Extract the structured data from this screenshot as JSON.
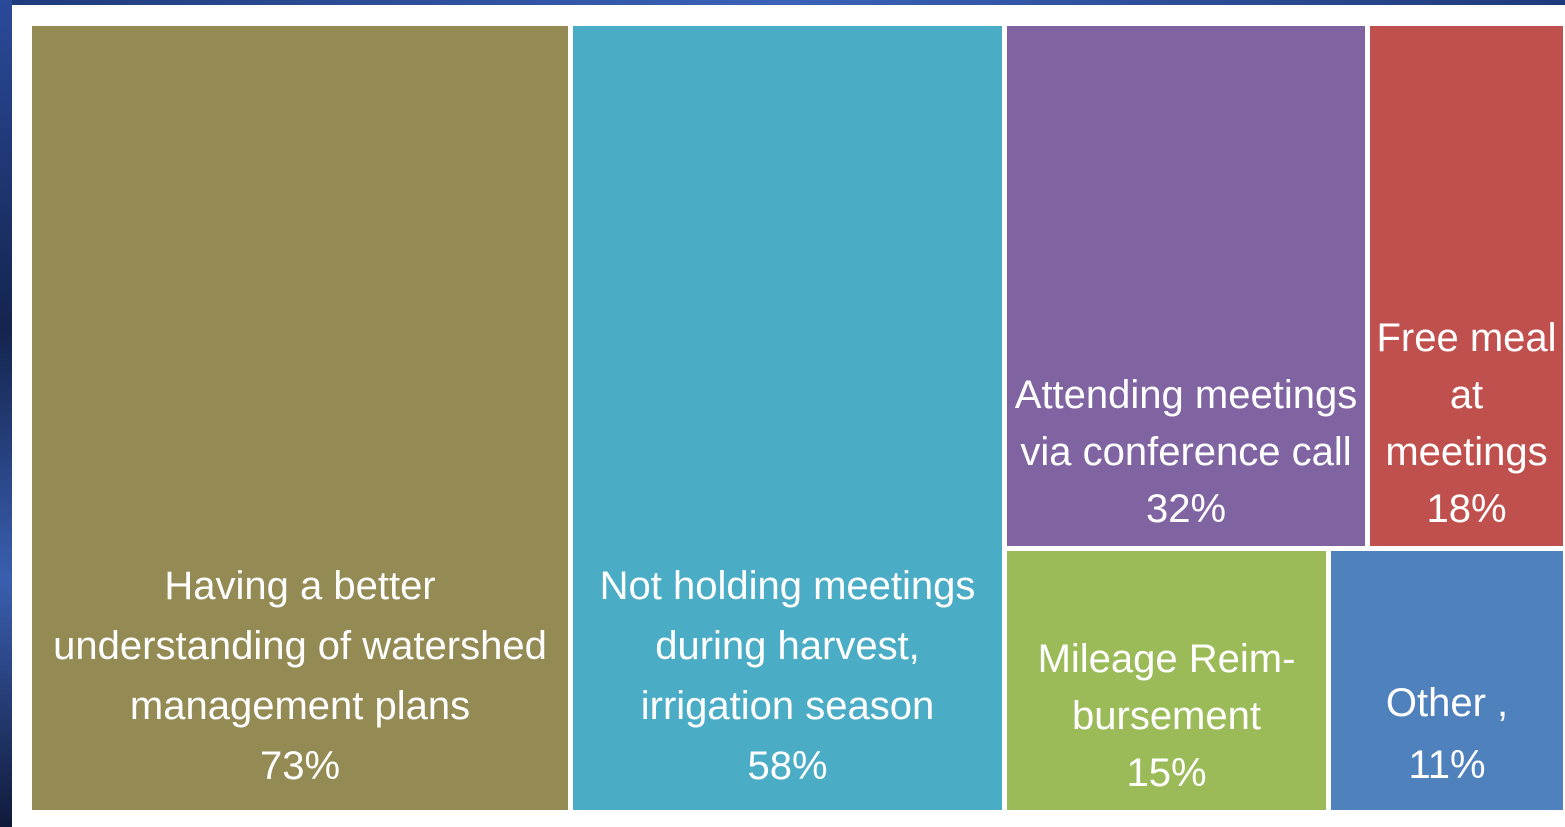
{
  "chart_data": {
    "type": "treemap",
    "categories": [
      "Having a better understanding of watershed management plans",
      "Not holding meetings during harvest, irrigation season",
      "Attending meetings via conference call",
      "Free meal at meetings",
      "Mileage Reim-bursement",
      "Other ,"
    ],
    "values": [
      73,
      58,
      32,
      18,
      15,
      11
    ],
    "value_labels": [
      "73%",
      "58%",
      "32%",
      "18%",
      "15%",
      "11%"
    ],
    "colors": [
      "#948a54",
      "#4bacc6",
      "#8064a2",
      "#c0504d",
      "#9bbb59",
      "#4f81bd"
    ]
  }
}
